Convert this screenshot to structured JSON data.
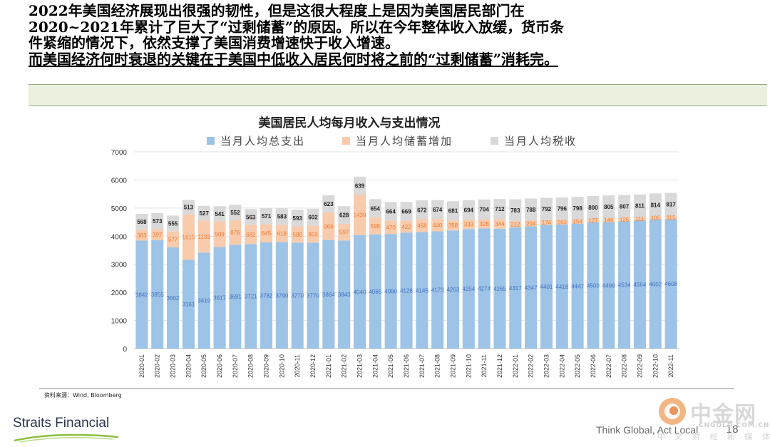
{
  "headline": {
    "lines": [
      "2022年美国经济展现出很强的韧性，但是这很大程度上是因为美国居民部门在",
      "2020~2021年累计了巨大了“过剩储蓄”的原因。所以在今年整体收入放缓，货币条",
      "件紧缩的情况下，依然支撑了美国消费增速快于收入增速。",
      "而美国经济何时衰退的关键在于美国中低收入居民何时将之前的“过剩储蓄”消耗完。"
    ]
  },
  "chart_data": {
    "type": "bar",
    "stacked": true,
    "title": "美国居民人均每月收入与支出情况",
    "xlabel": "",
    "ylabel": "",
    "ylim": [
      0,
      7000
    ],
    "yticks": [
      0,
      1000,
      2000,
      3000,
      4000,
      5000,
      6000,
      7000
    ],
    "grid": true,
    "legend_position": "top",
    "categories": [
      "2020-01",
      "2020-02",
      "2020-03",
      "2020-04",
      "2020-05",
      "2020-06",
      "2020-07",
      "2020-08",
      "2020-09",
      "2020-10",
      "2020-11",
      "2020-12",
      "2021-01",
      "2021-02",
      "2021-03",
      "2021-04",
      "2021-05",
      "2021-06",
      "2021-07",
      "2021-08",
      "2021-09",
      "2021-10",
      "2021-11",
      "2021-12",
      "2022-01",
      "2022-02",
      "2022-03",
      "2022-04",
      "2022-05",
      "2022-06",
      "2022-07",
      "2022-08",
      "2022-09",
      "2022-10",
      "2022-11"
    ],
    "series": [
      {
        "name": "当月人均总支出",
        "color": "#9dc3e6",
        "values": [
          3842,
          3855,
          3602,
          3161,
          3419,
          3617,
          3691,
          3721,
          3782,
          3790,
          3770,
          3770,
          3864,
          3843,
          4040,
          4065,
          4080,
          4128,
          4145,
          4173,
          4203,
          4254,
          4274,
          4265,
          4317,
          4347,
          4401,
          4418,
          4447,
          4500,
          4499,
          4534,
          4564,
          4602,
          4608
        ]
      },
      {
        "name": "当月人均储蓄增加",
        "color": "#f8cbad",
        "values": [
          383,
          397,
          577,
          1615,
          1133,
          909,
          876,
          682,
          645,
          618,
          580,
          603,
          968,
          597,
          1439,
          598,
          470,
          422,
          458,
          440,
          358,
          333,
          328,
          344,
          212,
          204,
          174,
          163,
          154,
          127,
          146,
          125,
          111,
          105,
          115
        ]
      },
      {
        "name": "当月人均税收",
        "color": "#d9d9d9",
        "values": [
          568,
          573,
          555,
          513,
          527,
          541,
          552,
          563,
          571,
          583,
          593,
          602,
          623,
          628,
          639,
          654,
          664,
          669,
          672,
          674,
          681,
          694,
          704,
          712,
          783,
          788,
          792,
          796,
          798,
          800,
          805,
          807,
          811,
          814,
          817
        ]
      }
    ]
  },
  "source_note": "资料来源：Wind, Bloomberg",
  "footer": {
    "left_logo": "Straits Financial",
    "slogan": "Think Global, Act Local",
    "page_number": "18"
  },
  "watermark": {
    "title": "中金网",
    "url": "CNGOLD.COM.CN",
    "subtitle": "中 文 财 经 新 媒 体"
  }
}
